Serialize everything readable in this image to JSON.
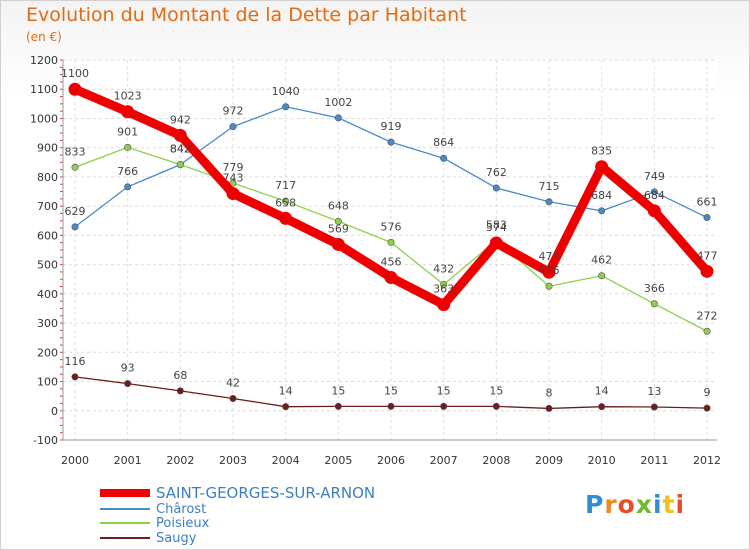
{
  "header": {
    "title": "Evolution du Montant de la Dette par Habitant",
    "subtitle": "(en €)"
  },
  "logo": {
    "text": "Proxiti"
  },
  "chart_data": {
    "type": "line",
    "categories": [
      "2000",
      "2001",
      "2002",
      "2003",
      "2004",
      "2005",
      "2006",
      "2007",
      "2008",
      "2009",
      "2010",
      "2011",
      "2012"
    ],
    "ylim": [
      -100,
      1200
    ],
    "yticks": [
      -100,
      0,
      100,
      200,
      300,
      400,
      500,
      600,
      700,
      800,
      900,
      1000,
      1100,
      1200
    ],
    "grid": true,
    "legend_position": "bottom-left",
    "series": [
      {
        "name": "SAINT-GEORGES-SUR-ARNON",
        "color": "#ee0000",
        "values": [
          1100,
          1023,
          942,
          743,
          658,
          569,
          456,
          363,
          574,
          474,
          835,
          684,
          477
        ]
      },
      {
        "name": "Chârost",
        "color": "#4a8ac8",
        "values": [
          629,
          766,
          842,
          972,
          1040,
          1002,
          919,
          864,
          762,
          715,
          684,
          749,
          661
        ]
      },
      {
        "name": "Poisieux",
        "color": "#8fd04a",
        "values": [
          833,
          901,
          842,
          779,
          717,
          648,
          576,
          432,
          583,
          426,
          462,
          366,
          272
        ]
      },
      {
        "name": "Saugy",
        "color": "#6a1e1e",
        "values": [
          116,
          93,
          68,
          42,
          14,
          15,
          15,
          15,
          15,
          8,
          14,
          13,
          9
        ]
      }
    ]
  }
}
